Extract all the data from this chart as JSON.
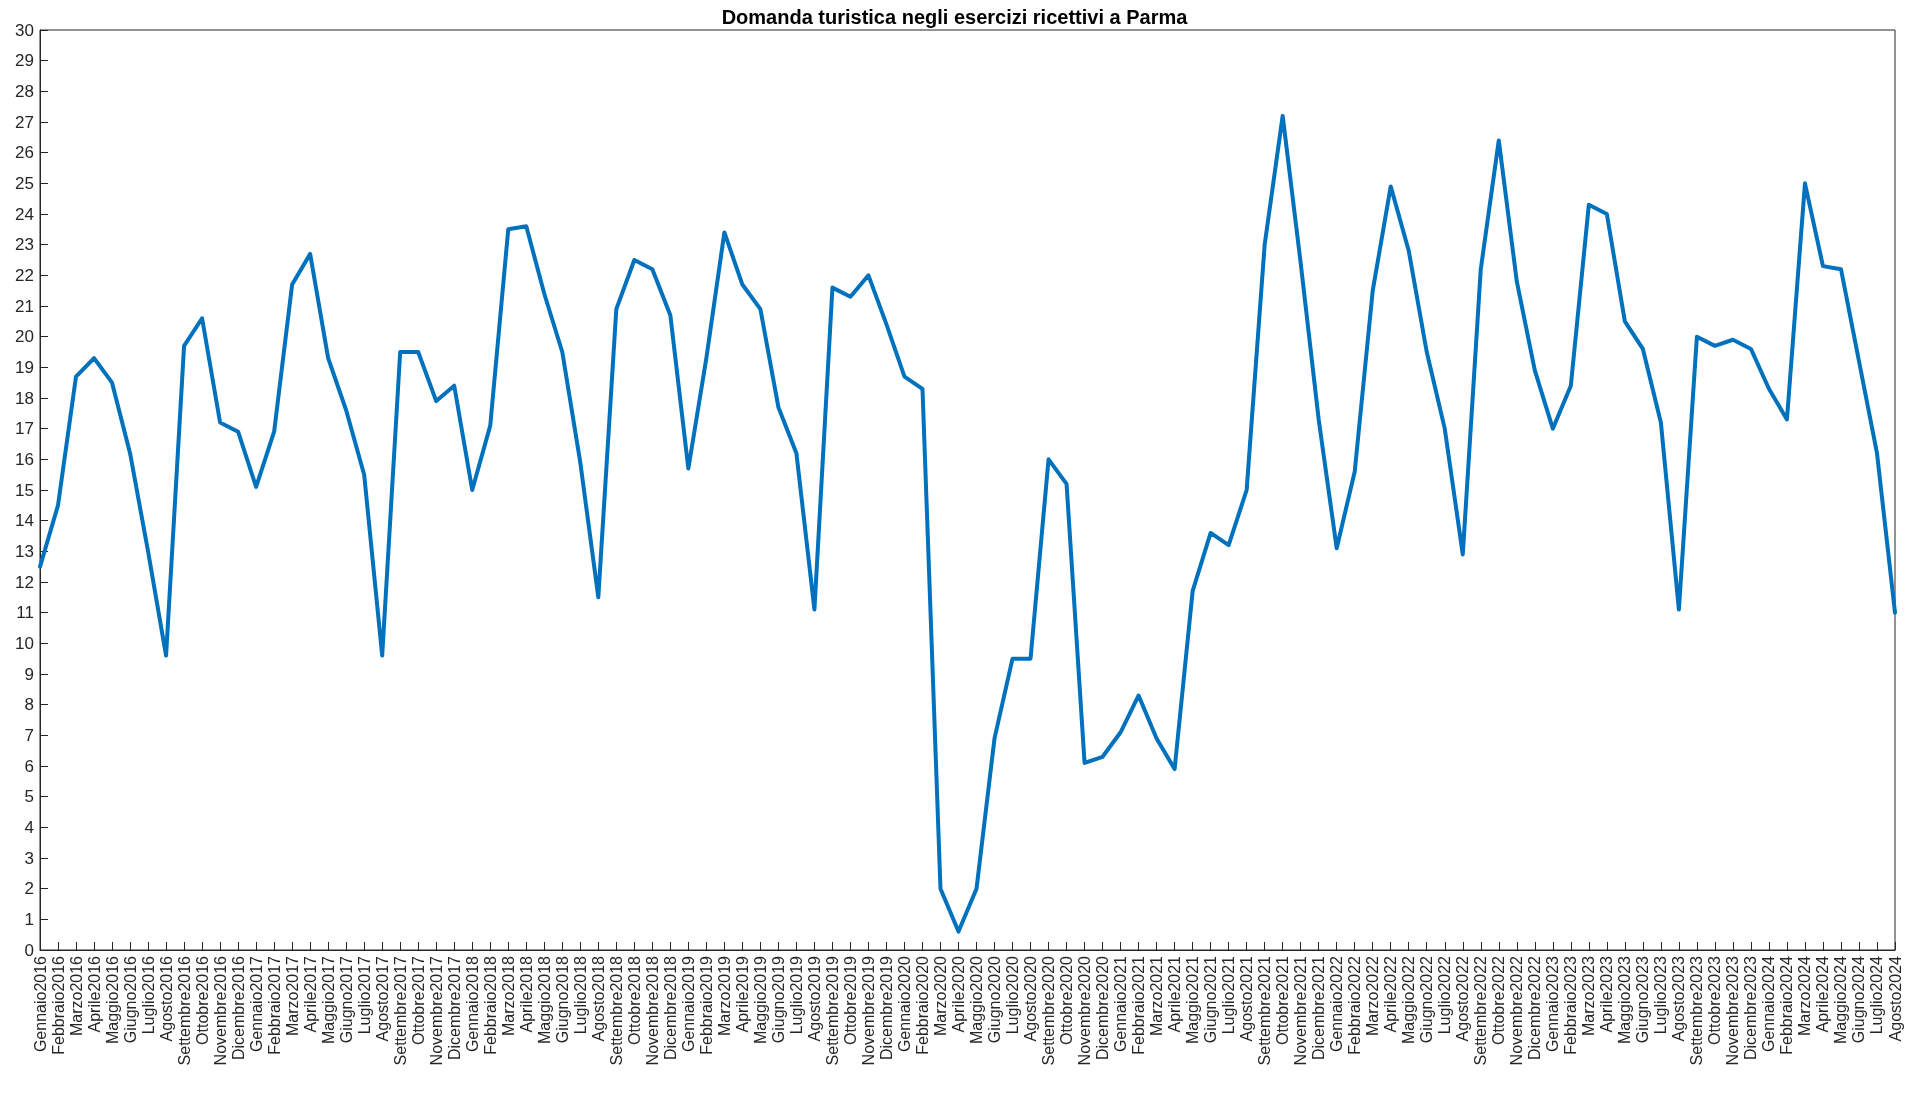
{
  "chart_data": {
    "type": "line",
    "title": "Domanda turistica negli esercizi ricettivi a Parma",
    "categories": [
      "Gennaio2016",
      "Febbraio2016",
      "Marzo2016",
      "Aprile2016",
      "Maggio2016",
      "Giugno2016",
      "Luglio2016",
      "Agosto2016",
      "Settembre2016",
      "Ottobre2016",
      "Novembre2016",
      "Dicembre2016",
      "Gennaio2017",
      "Febbraio2017",
      "Marzo2017",
      "Aprile2017",
      "Maggio2017",
      "Giugno2017",
      "Luglio2017",
      "Agosto2017",
      "Settembre2017",
      "Ottobre2017",
      "Novembre2017",
      "Dicembre2017",
      "Gennaio2018",
      "Febbraio2018",
      "Marzo2018",
      "Aprile2018",
      "Maggio2018",
      "Giugno2018",
      "Luglio2018",
      "Agosto2018",
      "Settembre2018",
      "Ottobre2018",
      "Novembre2018",
      "Dicembre2018",
      "Gennaio2019",
      "Febbraio2019",
      "Marzo2019",
      "Aprile2019",
      "Maggio2019",
      "Giugno2019",
      "Luglio2019",
      "Agosto2019",
      "Settembre2019",
      "Ottobre2019",
      "Novembre2019",
      "Dicembre2019",
      "Gennaio2020",
      "Febbraio2020",
      "Marzo2020",
      "Aprile2020",
      "Maggio2020",
      "Giugno2020",
      "Luglio2020",
      "Agosto2020",
      "Settembre2020",
      "Ottobre2020",
      "Novembre2020",
      "Dicembre2020",
      "Gennaio2021",
      "Febbraio2021",
      "Marzo2021",
      "Aprile2021",
      "Maggio2021",
      "Giugno2021",
      "Luglio2021",
      "Agosto2021",
      "Settembre2021",
      "Ottobre2021",
      "Novembre2021",
      "Dicembre2021",
      "Gennaio2022",
      "Febbraio2022",
      "Marzo2022",
      "Aprile2022",
      "Maggio2022",
      "Giugno2022",
      "Luglio2022",
      "Agosto2022",
      "Settembre2022",
      "Ottobre2022",
      "Novembre2022",
      "Dicembre2022",
      "Gennaio2023",
      "Febbraio2023",
      "Marzo2023",
      "Aprile2023",
      "Maggio2023",
      "Giugno2023",
      "Luglio2023",
      "Agosto2023",
      "Settembre2023",
      "Ottobre2023",
      "Novembre2023",
      "Dicembre2023",
      "Gennaio2024",
      "Febbraio2024",
      "Marzo2024",
      "Aprile2024",
      "Maggio2024",
      "Giugno2024",
      "Luglio2024",
      "Agosto2024"
    ],
    "series": [
      {
        "color": "#0072bd",
        "values": [
          12.5,
          14.5,
          18.7,
          19.3,
          18.5,
          16.2,
          13.0,
          9.6,
          19.7,
          20.6,
          17.2,
          16.9,
          15.1,
          16.9,
          21.7,
          22.7,
          19.3,
          17.6,
          15.5,
          9.6,
          19.5,
          19.5,
          17.9,
          18.4,
          15.0,
          17.1,
          23.5,
          23.6,
          21.4,
          19.5,
          15.9,
          11.5,
          20.9,
          22.5,
          22.2,
          20.7,
          15.7,
          19.3,
          23.4,
          21.7,
          20.9,
          17.7,
          16.2,
          11.1,
          21.6,
          21.3,
          22.0,
          20.4,
          18.7,
          18.3,
          2.0,
          0.6,
          2.0,
          6.9,
          9.5,
          9.5,
          16.0,
          15.2,
          6.1,
          6.3,
          7.1,
          8.3,
          6.9,
          5.9,
          11.7,
          13.6,
          13.2,
          15.0,
          23.0,
          27.2,
          22.4,
          17.3,
          13.1,
          15.6,
          21.5,
          24.9,
          22.8,
          19.5,
          17.0,
          12.9,
          22.2,
          26.4,
          21.8,
          18.9,
          17.0,
          18.4,
          24.3,
          24.0,
          20.5,
          19.6,
          17.2,
          11.1,
          20.0,
          19.7,
          19.9,
          19.6,
          18.3,
          17.3,
          25.0,
          22.3,
          22.2,
          19.2,
          16.2,
          11.0
        ]
      }
    ],
    "ylim": [
      0,
      30
    ],
    "yticks": [
      0,
      1,
      2,
      3,
      4,
      5,
      6,
      7,
      8,
      9,
      10,
      11,
      12,
      13,
      14,
      15,
      16,
      17,
      18,
      19,
      20,
      21,
      22,
      23,
      24,
      25,
      26,
      27,
      28,
      29,
      30
    ],
    "grid": false,
    "marker": "none",
    "line_style": "solid"
  }
}
